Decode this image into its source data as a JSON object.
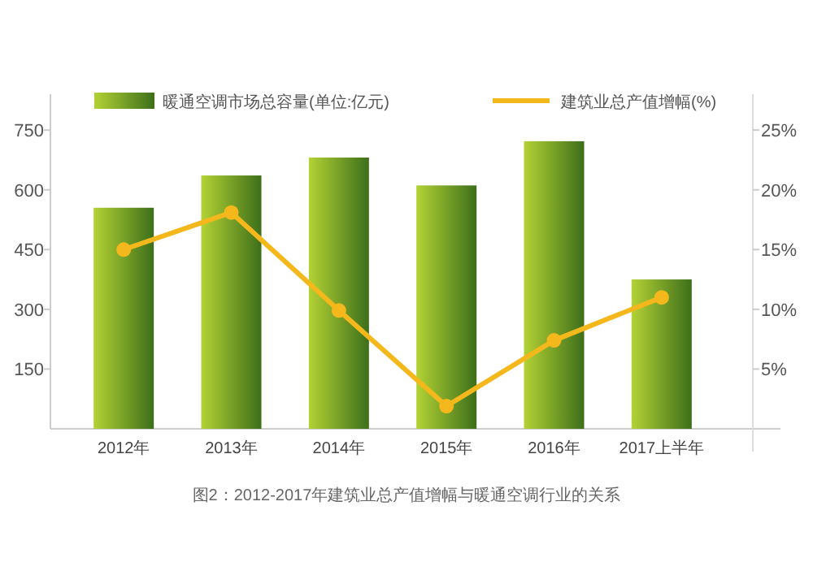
{
  "chart_data": {
    "type": "bar",
    "categories": [
      "2012年",
      "2013年",
      "2014年",
      "2015年",
      "2016年",
      "2017上半年"
    ],
    "series": [
      {
        "name": "暖通空调市场总容量(单位:亿元)",
        "color": "#7aab2c",
        "values": [
          555,
          636,
          681,
          611,
          722,
          375
        ]
      },
      {
        "name": "建筑业总产值增幅(%)",
        "type": "line",
        "axis": "y2",
        "color": "#f5b81c",
        "values": [
          15,
          18.1,
          9.9,
          1.9,
          7.4,
          11
        ]
      }
    ],
    "ylim": [
      0,
      840
    ],
    "yticks": [
      150,
      300,
      450,
      600,
      750
    ],
    "y2lim": [
      0,
      28
    ],
    "y2ticks": [
      {
        "value": 5,
        "label": "5%"
      },
      {
        "value": 10,
        "label": "10%"
      },
      {
        "value": 15,
        "label": "15%"
      },
      {
        "value": 20,
        "label": "20%"
      },
      {
        "value": 25,
        "label": "25%"
      }
    ],
    "legend": "top",
    "marker": "circle",
    "grid": false,
    "annotations": [
      "图2：2012-2017年建筑业总产值增幅与暖通空调行业的关系"
    ]
  }
}
